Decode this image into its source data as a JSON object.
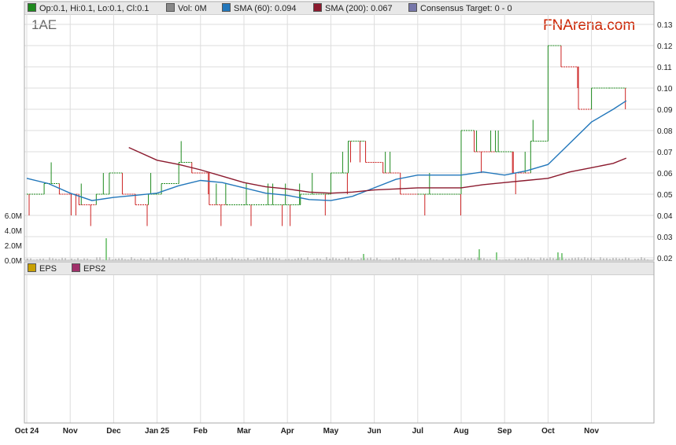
{
  "ticker": "1AE",
  "brand": "FNArena.com",
  "legend": [
    {
      "label": "Op:0.1, Hi:0.1, Lo:0.1, Cl:0.1",
      "color": "#1e8a1e"
    },
    {
      "label": "Vol: 0M",
      "color": "#888888"
    },
    {
      "label": "SMA (60): 0.094",
      "color": "#2277bb"
    },
    {
      "label": "SMA (200): 0.067",
      "color": "#8b1a2e"
    },
    {
      "label": "Consensus Target: 0 - 0",
      "color": "#7777aa"
    }
  ],
  "eps_legend": [
    {
      "label": "EPS",
      "color": "#c8a000"
    },
    {
      "label": "EPS2",
      "color": "#a0306a"
    }
  ],
  "chart_data": {
    "type": "line",
    "x_axis": {
      "start": "2024-10-01",
      "end": "2024-11-26",
      "tick_labels": [
        "Oct 24",
        "Nov",
        "Dec",
        "Jan 25",
        "Feb",
        "Mar",
        "Apr",
        "May",
        "Jun",
        "Jul",
        "Aug",
        "Sep",
        "Oct",
        "Nov"
      ]
    },
    "y_axis": {
      "ylim": [
        0.02,
        0.13
      ],
      "ticks": [
        "0.13",
        "0.12",
        "0.11",
        "0.10",
        "0.09",
        "0.08",
        "0.07",
        "0.06",
        "0.05",
        "0.04",
        "0.03",
        "0.02"
      ]
    },
    "volume_axis": {
      "ylim": [
        0,
        6
      ],
      "unit": "M",
      "ticks": [
        "6.0M",
        "4.0M",
        "2.0M",
        "0.0M"
      ]
    },
    "colors": {
      "up": "#1e8a1e",
      "down": "#cc2222",
      "sma60": "#2277bb",
      "sma200": "#8b1a2e",
      "volume": "#999999",
      "volume_high": "#88cc88",
      "grid": "#dddddd"
    },
    "series": [
      {
        "name": "SMA (60)",
        "points": [
          [
            0,
            0.0575
          ],
          [
            0.5,
            0.055
          ],
          [
            1,
            0.0505
          ],
          [
            1.5,
            0.047
          ],
          [
            2,
            0.0485
          ],
          [
            2.5,
            0.0495
          ],
          [
            3,
            0.0505
          ],
          [
            3.5,
            0.054
          ],
          [
            4,
            0.0565
          ],
          [
            4.5,
            0.0555
          ],
          [
            5,
            0.053
          ],
          [
            5.5,
            0.0505
          ],
          [
            6,
            0.0495
          ],
          [
            6.5,
            0.0475
          ],
          [
            7,
            0.047
          ],
          [
            7.5,
            0.049
          ],
          [
            8,
            0.053
          ],
          [
            8.5,
            0.057
          ],
          [
            9,
            0.059
          ],
          [
            9.5,
            0.059
          ],
          [
            10,
            0.059
          ],
          [
            10.5,
            0.0605
          ],
          [
            11,
            0.059
          ],
          [
            11.5,
            0.061
          ],
          [
            12,
            0.064
          ],
          [
            12.5,
            0.074
          ],
          [
            13,
            0.084
          ],
          [
            13.5,
            0.09
          ],
          [
            13.8,
            0.094
          ]
        ]
      },
      {
        "name": "SMA (200)",
        "points": [
          [
            2.35,
            0.072
          ],
          [
            3,
            0.066
          ],
          [
            3.5,
            0.064
          ],
          [
            4,
            0.0615
          ],
          [
            4.5,
            0.0585
          ],
          [
            5,
            0.0555
          ],
          [
            5.5,
            0.0535
          ],
          [
            6,
            0.0525
          ],
          [
            6.5,
            0.051
          ],
          [
            7,
            0.0505
          ],
          [
            7.5,
            0.051
          ],
          [
            8,
            0.052
          ],
          [
            8.5,
            0.0525
          ],
          [
            9,
            0.053
          ],
          [
            9.5,
            0.053
          ],
          [
            10,
            0.053
          ],
          [
            10.5,
            0.0545
          ],
          [
            11,
            0.0555
          ],
          [
            11.5,
            0.0565
          ],
          [
            12,
            0.0575
          ],
          [
            12.5,
            0.0605
          ],
          [
            13,
            0.0625
          ],
          [
            13.5,
            0.0645
          ],
          [
            13.8,
            0.067
          ]
        ]
      }
    ],
    "price_segments": [
      [
        0.0,
        0.4,
        0.05
      ],
      [
        0.4,
        0.75,
        0.055
      ],
      [
        0.75,
        1.2,
        0.05
      ],
      [
        1.2,
        1.6,
        0.045
      ],
      [
        1.6,
        1.9,
        0.05
      ],
      [
        1.9,
        2.2,
        0.06
      ],
      [
        2.2,
        2.5,
        0.05
      ],
      [
        2.5,
        2.8,
        0.045
      ],
      [
        2.8,
        3.1,
        0.05
      ],
      [
        3.1,
        3.5,
        0.055
      ],
      [
        3.5,
        3.8,
        0.065
      ],
      [
        3.8,
        4.2,
        0.06
      ],
      [
        4.2,
        4.6,
        0.045
      ],
      [
        4.6,
        5.0,
        0.045
      ],
      [
        5.0,
        5.5,
        0.045
      ],
      [
        5.5,
        5.9,
        0.045
      ],
      [
        5.9,
        6.3,
        0.045
      ],
      [
        6.3,
        6.6,
        0.05
      ],
      [
        6.6,
        7.0,
        0.05
      ],
      [
        7.0,
        7.4,
        0.06
      ],
      [
        7.4,
        7.8,
        0.075
      ],
      [
        7.8,
        8.2,
        0.065
      ],
      [
        8.2,
        8.6,
        0.06
      ],
      [
        8.6,
        9.0,
        0.05
      ],
      [
        9.0,
        9.5,
        0.05
      ],
      [
        9.5,
        10.0,
        0.05
      ],
      [
        10.0,
        10.3,
        0.08
      ],
      [
        10.3,
        10.8,
        0.07
      ],
      [
        10.8,
        11.2,
        0.07
      ],
      [
        11.2,
        11.6,
        0.06
      ],
      [
        11.6,
        12.0,
        0.075
      ],
      [
        12.0,
        12.3,
        0.12
      ],
      [
        12.3,
        12.7,
        0.11
      ],
      [
        12.7,
        13.0,
        0.09
      ],
      [
        13.0,
        13.4,
        0.1
      ],
      [
        13.4,
        13.8,
        0.1
      ]
    ]
  }
}
